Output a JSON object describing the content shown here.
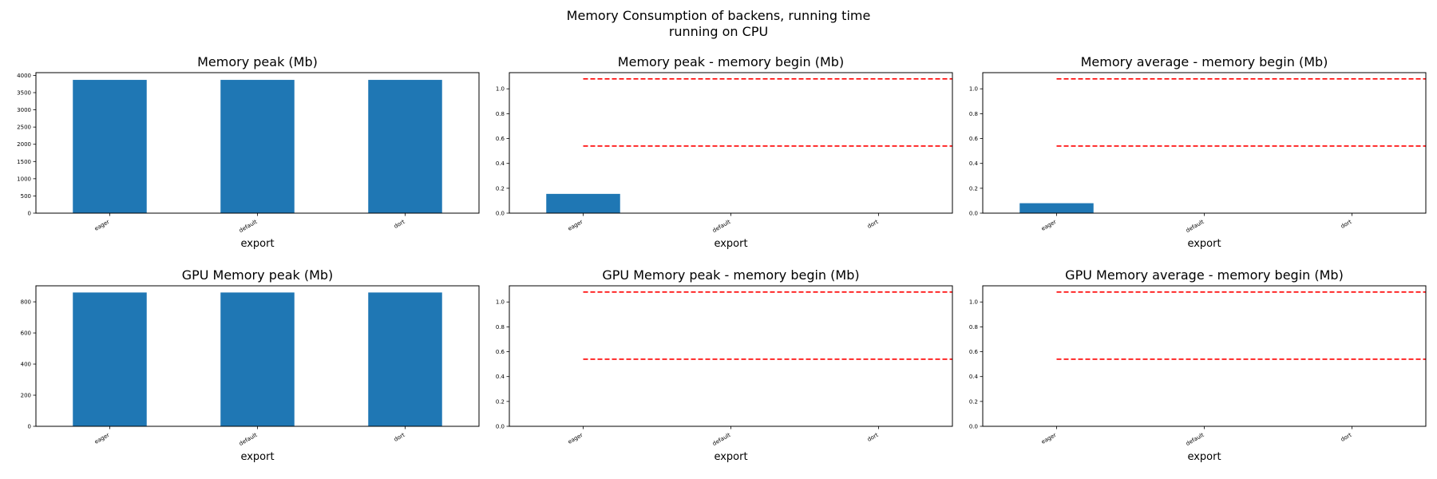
{
  "figure": {
    "title_line1": "Memory Consumption of backens, running time",
    "title_line2": "running on CPU"
  },
  "colors": {
    "bar": "#1f77b4",
    "reference_line": "#ff0000",
    "axis": "#000000"
  },
  "chart_data": [
    {
      "type": "bar",
      "title": "Memory peak (Mb)",
      "xlabel": "export",
      "ylabel": "",
      "categories": [
        "eager",
        "default",
        "dort"
      ],
      "values": [
        3870,
        3870,
        3870
      ],
      "ylim": [
        0,
        4080
      ],
      "yticks": [
        "0",
        "500",
        "1000",
        "1500",
        "2000",
        "2500",
        "3000",
        "3500",
        "4000"
      ],
      "ytick_values": [
        0,
        500,
        1000,
        1500,
        2000,
        2500,
        3000,
        3500,
        4000
      ],
      "reference_lines": [],
      "grid": false,
      "legend": "none"
    },
    {
      "type": "bar",
      "title": "Memory peak - memory begin (Mb)",
      "xlabel": "export",
      "ylabel": "",
      "categories": [
        "eager",
        "default",
        "dort"
      ],
      "values": [
        0.155,
        0,
        0
      ],
      "ylim": [
        0,
        1.13
      ],
      "yticks": [
        "0.0",
        "0.2",
        "0.4",
        "0.6",
        "0.8",
        "1.0"
      ],
      "ytick_values": [
        0,
        0.2,
        0.4,
        0.6,
        0.8,
        1.0
      ],
      "reference_lines": [
        1.08,
        0.54
      ],
      "grid": false,
      "legend": "none"
    },
    {
      "type": "bar",
      "title": "Memory average - memory begin (Mb)",
      "xlabel": "export",
      "ylabel": "",
      "categories": [
        "eager",
        "default",
        "dort"
      ],
      "values": [
        0.08,
        0,
        0
      ],
      "ylim": [
        0,
        1.13
      ],
      "yticks": [
        "0.0",
        "0.2",
        "0.4",
        "0.6",
        "0.8",
        "1.0"
      ],
      "ytick_values": [
        0,
        0.2,
        0.4,
        0.6,
        0.8,
        1.0
      ],
      "reference_lines": [
        1.08,
        0.54
      ],
      "grid": false,
      "legend": "none"
    },
    {
      "type": "bar",
      "title": "GPU Memory peak (Mb)",
      "xlabel": "export",
      "ylabel": "",
      "categories": [
        "eager",
        "default",
        "dort"
      ],
      "values": [
        860,
        860,
        860
      ],
      "ylim": [
        0,
        903
      ],
      "yticks": [
        "0",
        "200",
        "400",
        "600",
        "800"
      ],
      "ytick_values": [
        0,
        200,
        400,
        600,
        800
      ],
      "reference_lines": [],
      "grid": false,
      "legend": "none"
    },
    {
      "type": "bar",
      "title": "GPU Memory peak - memory begin (Mb)",
      "xlabel": "export",
      "ylabel": "",
      "categories": [
        "eager",
        "default",
        "dort"
      ],
      "values": [
        0,
        0,
        0
      ],
      "ylim": [
        0,
        1.13
      ],
      "yticks": [
        "0.0",
        "0.2",
        "0.4",
        "0.6",
        "0.8",
        "1.0"
      ],
      "ytick_values": [
        0,
        0.2,
        0.4,
        0.6,
        0.8,
        1.0
      ],
      "reference_lines": [
        1.08,
        0.54
      ],
      "grid": false,
      "legend": "none"
    },
    {
      "type": "bar",
      "title": "GPU Memory average - memory begin (Mb)",
      "xlabel": "export",
      "ylabel": "",
      "categories": [
        "eager",
        "default",
        "dort"
      ],
      "values": [
        0,
        0,
        0
      ],
      "ylim": [
        0,
        1.13
      ],
      "yticks": [
        "0.0",
        "0.2",
        "0.4",
        "0.6",
        "0.8",
        "1.0"
      ],
      "ytick_values": [
        0,
        0.2,
        0.4,
        0.6,
        0.8,
        1.0
      ],
      "reference_lines": [
        1.08,
        0.54
      ],
      "grid": false,
      "legend": "none"
    }
  ]
}
